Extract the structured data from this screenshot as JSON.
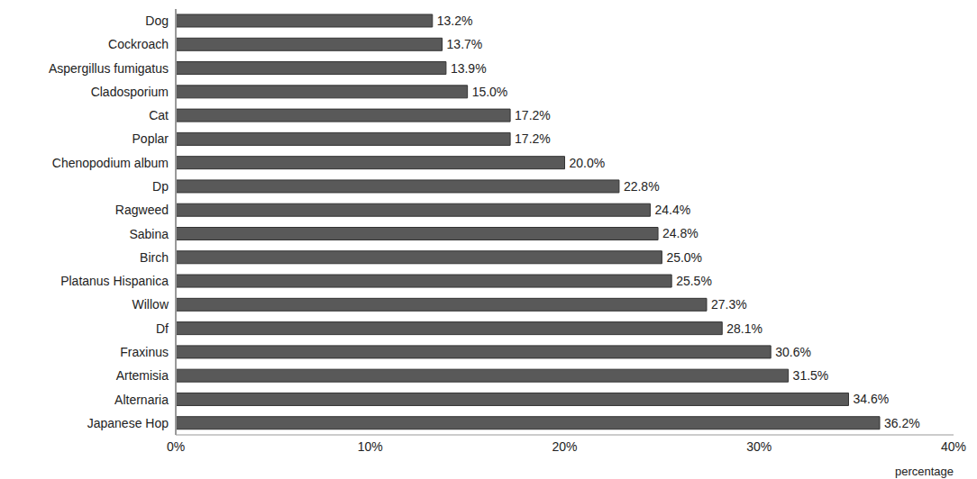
{
  "chart_data": {
    "type": "bar",
    "orientation": "horizontal",
    "x_label": "percentage",
    "categories": [
      "Dog",
      "Cockroach",
      "Aspergillus fumigatus",
      "Cladosporium",
      "Cat",
      "Poplar",
      "Chenopodium album",
      "Dp",
      "Ragweed",
      "Sabina",
      "Birch",
      "Platanus Hispanica",
      "Willow",
      "Df",
      "Fraxinus",
      "Artemisia",
      "Alternaria",
      "Japanese Hop"
    ],
    "values": [
      13.2,
      13.7,
      13.9,
      15.0,
      17.2,
      17.2,
      20.0,
      22.8,
      24.4,
      24.8,
      25.0,
      25.5,
      27.3,
      28.1,
      30.6,
      31.5,
      34.6,
      36.2
    ],
    "value_labels": [
      "13.2%",
      "13.7%",
      "13.9%",
      "15.0%",
      "17.2%",
      "17.2%",
      "20.0%",
      "22.8%",
      "24.4%",
      "24.8%",
      "25.0%",
      "25.5%",
      "27.3%",
      "28.1%",
      "30.6%",
      "31.5%",
      "34.6%",
      "36.2%"
    ],
    "color": "#595959",
    "xlim": [
      0,
      40
    ],
    "xticks": [
      {
        "value": 0,
        "label": "0%"
      },
      {
        "value": 10,
        "label": "10%"
      },
      {
        "value": 20,
        "label": "20%"
      },
      {
        "value": 30,
        "label": "30%"
      },
      {
        "value": 40,
        "label": "40%"
      }
    ],
    "grid": false,
    "data_labels": true
  }
}
